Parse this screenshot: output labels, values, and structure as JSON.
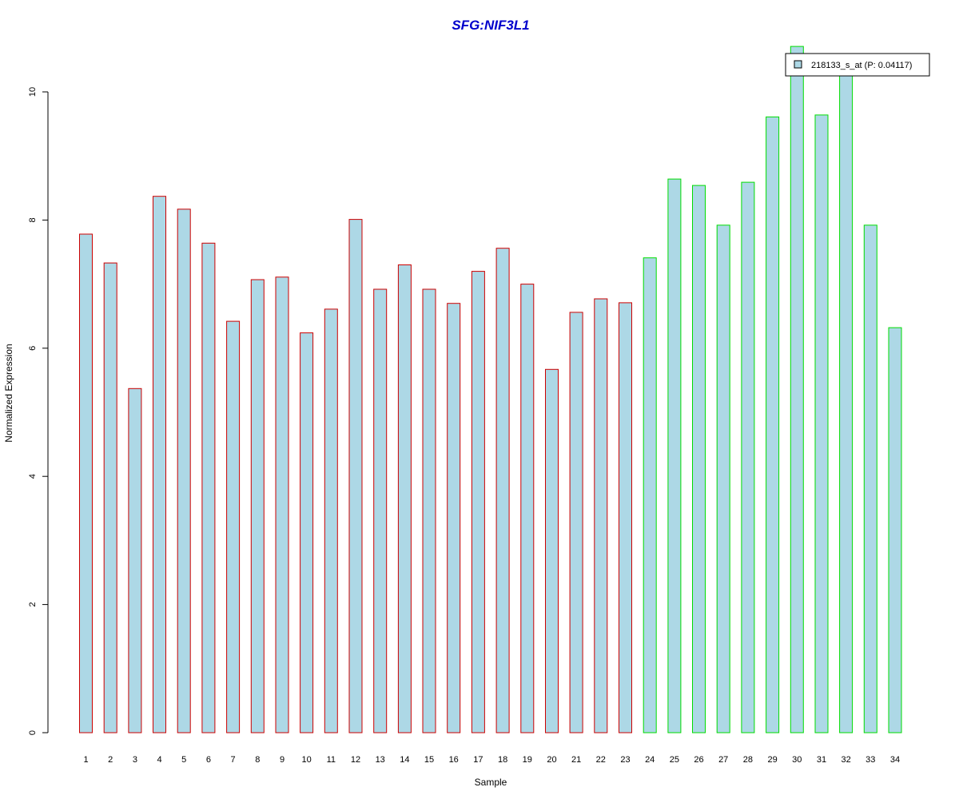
{
  "chart_data": {
    "type": "bar",
    "title": "SFG:NIF3L1",
    "xlabel": "Sample",
    "ylabel": "Normalized Expression",
    "categories": [
      "1",
      "2",
      "3",
      "4",
      "5",
      "6",
      "7",
      "8",
      "9",
      "10",
      "11",
      "12",
      "13",
      "14",
      "15",
      "16",
      "17",
      "18",
      "19",
      "20",
      "21",
      "22",
      "23",
      "24",
      "25",
      "26",
      "27",
      "28",
      "29",
      "30",
      "31",
      "32",
      "33",
      "34"
    ],
    "series": [
      {
        "name": "218133_s_at (P: 0.04117)",
        "values": [
          7.78,
          7.33,
          5.37,
          8.37,
          8.17,
          7.64,
          6.42,
          7.07,
          7.11,
          6.24,
          6.61,
          8.01,
          6.92,
          7.3,
          6.92,
          6.7,
          7.2,
          7.56,
          7.0,
          5.67,
          6.56,
          6.77,
          6.71,
          7.41,
          8.64,
          8.54,
          7.92,
          8.59,
          9.61,
          10.71,
          9.64,
          10.4,
          7.92,
          6.32
        ]
      }
    ],
    "group_border_colors": [
      "#cc0000",
      "#cc0000",
      "#cc0000",
      "#cc0000",
      "#cc0000",
      "#cc0000",
      "#cc0000",
      "#cc0000",
      "#cc0000",
      "#cc0000",
      "#cc0000",
      "#cc0000",
      "#cc0000",
      "#cc0000",
      "#cc0000",
      "#cc0000",
      "#cc0000",
      "#cc0000",
      "#cc0000",
      "#cc0000",
      "#cc0000",
      "#cc0000",
      "#cc0000",
      "#00dd00",
      "#00dd00",
      "#00dd00",
      "#00dd00",
      "#00dd00",
      "#00dd00",
      "#00dd00",
      "#00dd00",
      "#00dd00",
      "#00dd00",
      "#00dd00"
    ],
    "bar_fill": "#add8e6",
    "title_color": "#0000cc",
    "ylim": [
      0,
      10.8
    ],
    "yticks": [
      0,
      2,
      4,
      6,
      8,
      10
    ],
    "legend_position": "top-right",
    "grid": false
  }
}
